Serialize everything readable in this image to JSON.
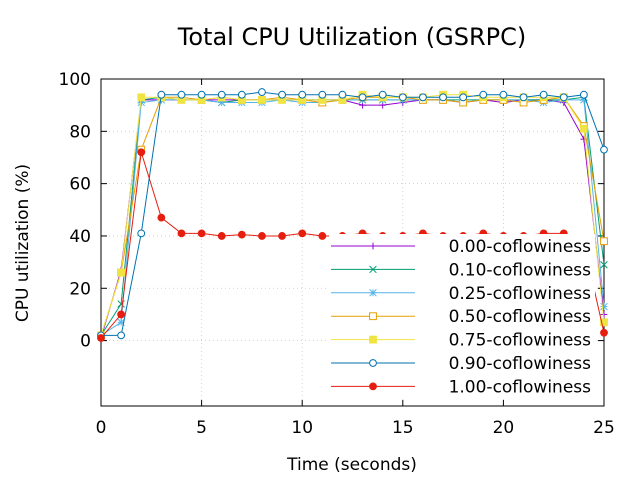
{
  "chart_data": {
    "type": "line",
    "title": "Total CPU Utilization (GSRPC)",
    "xlabel": "Time (seconds)",
    "ylabel": "CPU utilization (%)",
    "xlim": [
      0,
      25
    ],
    "ylim": [
      -25,
      100
    ],
    "x_ticks": [
      0,
      5,
      10,
      15,
      20,
      25
    ],
    "y_ticks": [
      0,
      20,
      40,
      60,
      80,
      100
    ],
    "grid": true,
    "legend_position": "bottom-right",
    "x": [
      0,
      1,
      2,
      3,
      4,
      5,
      6,
      7,
      8,
      9,
      10,
      11,
      12,
      13,
      14,
      15,
      16,
      17,
      18,
      19,
      20,
      21,
      22,
      23,
      24,
      25
    ],
    "series": [
      {
        "name": "0.00-coflowiness",
        "color": "#9400d3",
        "marker": "plus",
        "values": [
          1,
          27,
          92,
          92,
          92,
          92,
          92,
          92,
          92,
          92,
          92,
          92,
          92,
          90,
          90,
          91,
          92,
          92,
          91,
          92,
          91,
          92,
          92,
          91,
          77,
          10
        ]
      },
      {
        "name": "0.10-coflowiness",
        "color": "#009e73",
        "marker": "x",
        "values": [
          2,
          14,
          92,
          93,
          92,
          92,
          91,
          92,
          92,
          92,
          92,
          92,
          92,
          92,
          92,
          92,
          92,
          92,
          92,
          92,
          92,
          92,
          92,
          92,
          93,
          29
        ]
      },
      {
        "name": "0.25-coflowiness",
        "color": "#56b4e9",
        "marker": "star",
        "values": [
          2,
          7,
          91,
          92,
          92,
          92,
          91,
          91,
          91,
          92,
          91,
          91,
          92,
          92,
          92,
          92,
          92,
          92,
          91,
          92,
          92,
          92,
          91,
          92,
          92,
          13
        ]
      },
      {
        "name": "0.50-coflowiness",
        "color": "#e69f00",
        "marker": "open-square",
        "values": [
          2,
          26,
          73,
          93,
          93,
          92,
          93,
          92,
          92,
          93,
          92,
          91,
          92,
          93,
          93,
          93,
          92,
          92,
          91,
          92,
          92,
          91,
          92,
          93,
          82,
          38
        ]
      },
      {
        "name": "0.75-coflowiness",
        "color": "#f0e442",
        "marker": "filled-square",
        "values": [
          2,
          26,
          93,
          93,
          92,
          92,
          93,
          92,
          92,
          92,
          92,
          92,
          92,
          94,
          93,
          93,
          93,
          94,
          94,
          93,
          93,
          93,
          93,
          93,
          81,
          7
        ]
      },
      {
        "name": "0.90-coflowiness",
        "color": "#0072b2",
        "marker": "open-circle",
        "values": [
          2,
          2,
          41,
          94,
          94,
          94,
          94,
          94,
          95,
          94,
          94,
          94,
          94,
          93,
          94,
          93,
          93,
          93,
          93,
          94,
          94,
          93,
          94,
          93,
          94,
          73
        ]
      },
      {
        "name": "1.00-coflowiness",
        "color": "#e51e10",
        "marker": "filled-circle",
        "values": [
          1,
          10,
          72,
          47,
          41,
          41,
          40,
          40.5,
          40,
          40,
          41,
          40,
          40,
          41,
          40,
          40,
          41,
          40,
          40,
          41,
          40,
          40,
          41,
          41,
          37,
          3
        ]
      }
    ]
  }
}
